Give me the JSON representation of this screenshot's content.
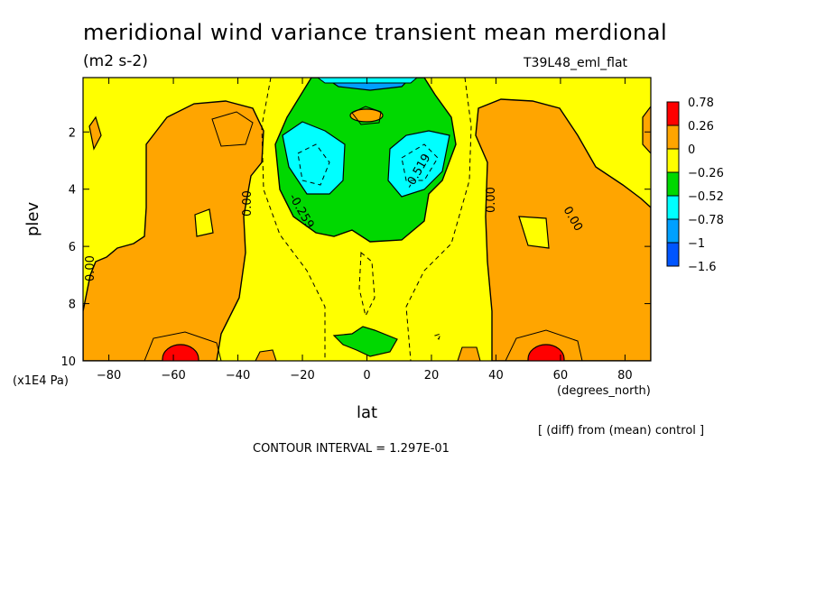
{
  "chart_data": {
    "type": "heatmap",
    "title": "meridional wind variance transient mean merdional",
    "units": "(m2 s-2)",
    "run_label": "T39L48_eml_flat",
    "xlabel": "lat",
    "xunit": "(degrees_north)",
    "ylabel": "plev",
    "yunit": "(x1E4 Pa)",
    "xlim": [
      -88,
      88
    ],
    "ylim": [
      10,
      0.1
    ],
    "xticks": [
      "-80",
      "-60",
      "-40",
      "-20",
      "0",
      "20",
      "40",
      "60",
      "80"
    ],
    "yticks": [
      "2",
      "4",
      "6",
      "8",
      "10"
    ],
    "colorbar": {
      "labels": [
        "0.78",
        "0.26",
        "0",
        "-0.26",
        "-0.52",
        "-0.78",
        "-1",
        "-1.6"
      ],
      "colors": [
        "#ff0000",
        "#ffa500",
        "#ffff00",
        "#00d800",
        "#00ffff",
        "#00a0ff",
        "#0055ff"
      ]
    },
    "contour_labels": [
      "0.00",
      "0.00",
      "0.00",
      "0.00",
      "-0.259",
      "-0.519"
    ],
    "notes": [
      "[ (diff) from (mean) control ]",
      "CONTOUR INTERVAL = 1.297E-01"
    ]
  }
}
